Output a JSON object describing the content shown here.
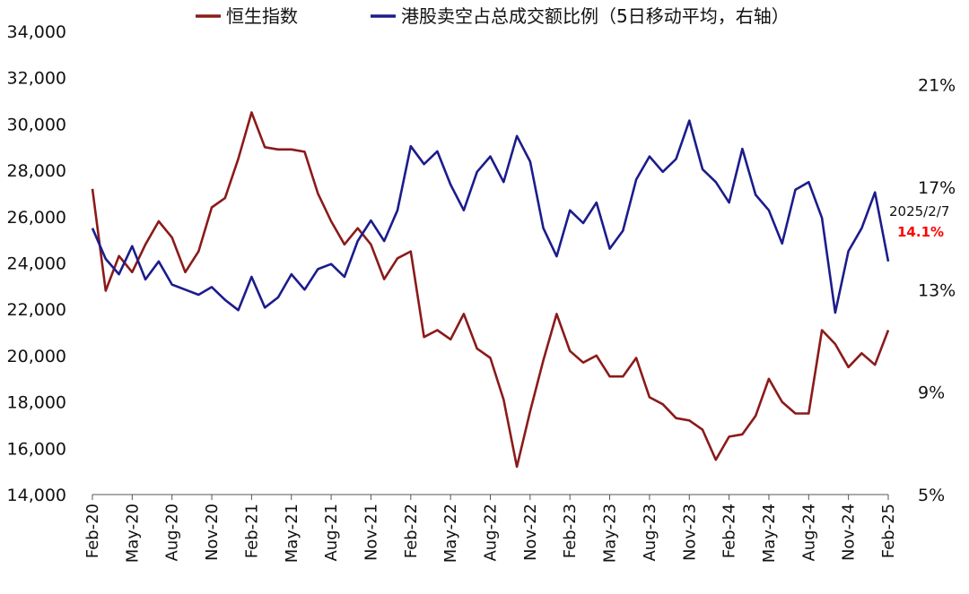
{
  "chart_data": {
    "type": "line",
    "x_ticks": [
      "Feb-20",
      "May-20",
      "Aug-20",
      "Nov-20",
      "Feb-21",
      "May-21",
      "Aug-21",
      "Nov-21",
      "Feb-22",
      "May-22",
      "Aug-22",
      "Nov-22",
      "Feb-23",
      "May-23",
      "Aug-23",
      "Nov-23",
      "Feb-24",
      "May-24",
      "Aug-24",
      "Nov-24",
      "Feb-25"
    ],
    "x_range": [
      "2020-02",
      "2025-02"
    ],
    "y_left": {
      "ticks": [
        "14,000",
        "16,000",
        "18,000",
        "20,000",
        "22,000",
        "24,000",
        "26,000",
        "28,000",
        "30,000",
        "32,000",
        "34,000"
      ],
      "ylim": [
        14000,
        34000
      ]
    },
    "y_right": {
      "ticks": [
        "5%",
        "9%",
        "13%",
        "17%",
        "21%"
      ],
      "ylim": [
        5,
        22
      ]
    },
    "legend": {
      "position": "top"
    },
    "series": [
      {
        "name": "恒生指数",
        "axis": "left",
        "color": "#8b1a1a",
        "points": [
          [
            "2020-02",
            27200
          ],
          [
            "2020-03",
            22800
          ],
          [
            "2020-04",
            24300
          ],
          [
            "2020-05",
            23600
          ],
          [
            "2020-06",
            24800
          ],
          [
            "2020-07",
            25800
          ],
          [
            "2020-08",
            25100
          ],
          [
            "2020-09",
            23600
          ],
          [
            "2020-10",
            24500
          ],
          [
            "2020-11",
            26400
          ],
          [
            "2020-12",
            26800
          ],
          [
            "2021-01",
            28500
          ],
          [
            "2021-02",
            30500
          ],
          [
            "2021-03",
            29000
          ],
          [
            "2021-04",
            28900
          ],
          [
            "2021-05",
            28900
          ],
          [
            "2021-06",
            28800
          ],
          [
            "2021-07",
            27000
          ],
          [
            "2021-08",
            25800
          ],
          [
            "2021-09",
            24800
          ],
          [
            "2021-10",
            25500
          ],
          [
            "2021-11",
            24800
          ],
          [
            "2021-12",
            23300
          ],
          [
            "2022-01",
            24200
          ],
          [
            "2022-02",
            24500
          ],
          [
            "2022-03",
            20800
          ],
          [
            "2022-04",
            21100
          ],
          [
            "2022-05",
            20700
          ],
          [
            "2022-06",
            21800
          ],
          [
            "2022-07",
            20300
          ],
          [
            "2022-08",
            19900
          ],
          [
            "2022-09",
            18100
          ],
          [
            "2022-10",
            15200
          ],
          [
            "2022-11",
            17600
          ],
          [
            "2022-12",
            19800
          ],
          [
            "2023-01",
            21800
          ],
          [
            "2023-02",
            20200
          ],
          [
            "2023-03",
            19700
          ],
          [
            "2023-04",
            20000
          ],
          [
            "2023-05",
            19100
          ],
          [
            "2023-06",
            19100
          ],
          [
            "2023-07",
            19900
          ],
          [
            "2023-08",
            18200
          ],
          [
            "2023-09",
            17900
          ],
          [
            "2023-10",
            17300
          ],
          [
            "2023-11",
            17200
          ],
          [
            "2023-12",
            16800
          ],
          [
            "2024-01",
            15500
          ],
          [
            "2024-02",
            16500
          ],
          [
            "2024-03",
            16600
          ],
          [
            "2024-04",
            17400
          ],
          [
            "2024-05",
            19000
          ],
          [
            "2024-06",
            18000
          ],
          [
            "2024-07",
            17500
          ],
          [
            "2024-08",
            17500
          ],
          [
            "2024-09",
            21100
          ],
          [
            "2024-10",
            20500
          ],
          [
            "2024-11",
            19500
          ],
          [
            "2024-12",
            20100
          ],
          [
            "2025-01",
            19600
          ],
          [
            "2025-02",
            21100
          ]
        ]
      },
      {
        "name": "港股卖空占总成交额比例（5日移动平均，右轴）",
        "axis": "right",
        "color": "#1c1c8c",
        "points": [
          [
            "2020-02",
            15.4
          ],
          [
            "2020-03",
            14.2
          ],
          [
            "2020-04",
            13.6
          ],
          [
            "2020-05",
            14.7
          ],
          [
            "2020-06",
            13.4
          ],
          [
            "2020-07",
            14.1
          ],
          [
            "2020-08",
            13.2
          ],
          [
            "2020-09",
            13.0
          ],
          [
            "2020-10",
            12.8
          ],
          [
            "2020-11",
            13.1
          ],
          [
            "2020-12",
            12.6
          ],
          [
            "2021-01",
            12.2
          ],
          [
            "2021-02",
            13.5
          ],
          [
            "2021-03",
            12.3
          ],
          [
            "2021-04",
            12.7
          ],
          [
            "2021-05",
            13.6
          ],
          [
            "2021-06",
            13.0
          ],
          [
            "2021-07",
            13.8
          ],
          [
            "2021-08",
            14.0
          ],
          [
            "2021-09",
            13.5
          ],
          [
            "2021-10",
            14.9
          ],
          [
            "2021-11",
            15.7
          ],
          [
            "2021-12",
            14.9
          ],
          [
            "2022-01",
            16.1
          ],
          [
            "2022-02",
            18.6
          ],
          [
            "2022-03",
            17.9
          ],
          [
            "2022-04",
            18.4
          ],
          [
            "2022-05",
            17.1
          ],
          [
            "2022-06",
            16.1
          ],
          [
            "2022-07",
            17.6
          ],
          [
            "2022-08",
            18.2
          ],
          [
            "2022-09",
            17.2
          ],
          [
            "2022-10",
            19.0
          ],
          [
            "2022-11",
            18.0
          ],
          [
            "2022-12",
            15.4
          ],
          [
            "2023-01",
            14.3
          ],
          [
            "2023-02",
            16.1
          ],
          [
            "2023-03",
            15.6
          ],
          [
            "2023-04",
            16.4
          ],
          [
            "2023-05",
            14.6
          ],
          [
            "2023-06",
            15.3
          ],
          [
            "2023-07",
            17.3
          ],
          [
            "2023-08",
            18.2
          ],
          [
            "2023-09",
            17.6
          ],
          [
            "2023-10",
            18.1
          ],
          [
            "2023-11",
            19.6
          ],
          [
            "2023-12",
            17.7
          ],
          [
            "2024-01",
            17.2
          ],
          [
            "2024-02",
            16.4
          ],
          [
            "2024-03",
            18.5
          ],
          [
            "2024-04",
            16.7
          ],
          [
            "2024-05",
            16.1
          ],
          [
            "2024-06",
            14.8
          ],
          [
            "2024-07",
            16.9
          ],
          [
            "2024-08",
            17.2
          ],
          [
            "2024-09",
            15.8
          ],
          [
            "2024-10",
            12.1
          ],
          [
            "2024-11",
            14.5
          ],
          [
            "2024-12",
            15.4
          ],
          [
            "2025-01",
            16.8
          ],
          [
            "2025-02",
            14.1
          ]
        ]
      }
    ],
    "annotation": {
      "date": "2025/2/7",
      "value": "14.1%",
      "value_color": "#ff0000"
    }
  }
}
